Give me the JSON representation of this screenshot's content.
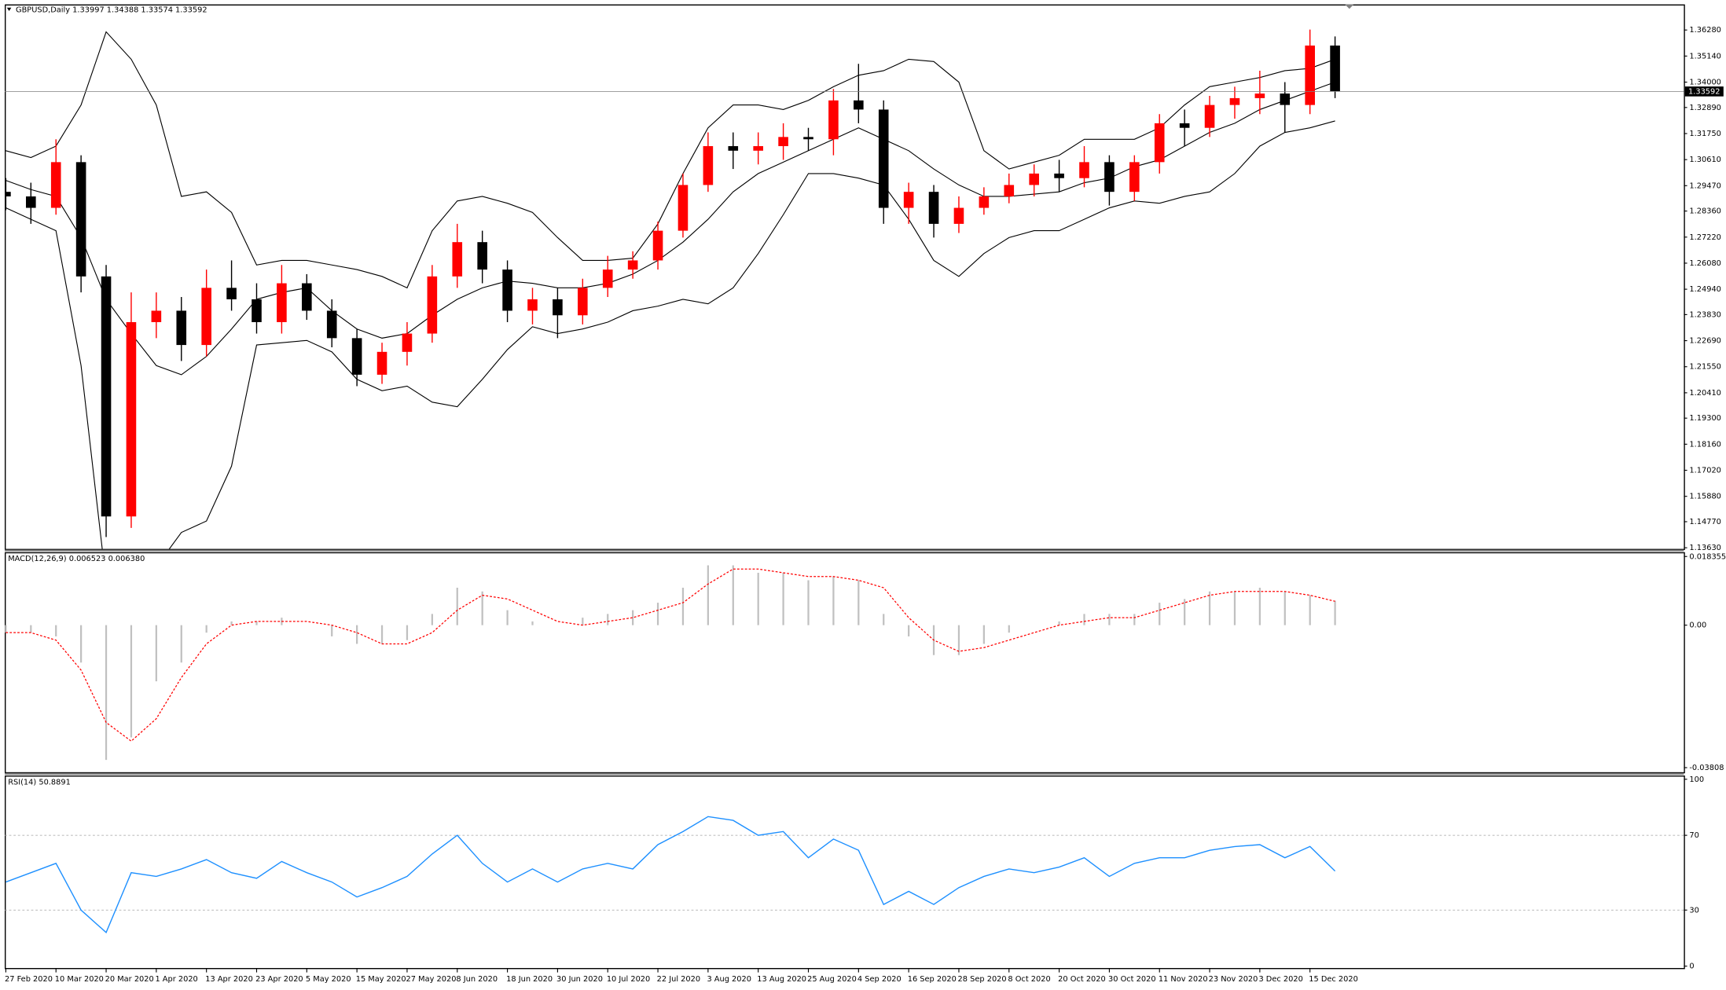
{
  "chart_data": [
    {
      "type": "candlestick",
      "title": "GBPUSD,Daily  1.33997 1.34388 1.33574 1.33592",
      "categories": [
        "27 Feb 2020",
        null,
        "10 Mar 2020",
        null,
        "20 Mar 2020",
        null,
        "1 Apr 2020",
        null,
        "13 Apr 2020",
        null,
        "23 Apr 2020",
        null,
        "5 May 2020",
        null,
        "15 May 2020",
        null,
        "27 May 2020",
        null,
        "8 Jun 2020",
        null,
        "18 Jun 2020",
        null,
        "30 Jun 2020",
        null,
        "10 Jul 2020",
        null,
        "22 Jul 2020",
        null,
        "3 Aug 2020",
        null,
        "13 Aug 2020",
        null,
        "25 Aug 2020",
        null,
        "4 Sep 2020",
        null,
        "16 Sep 2020",
        null,
        "28 Sep 2020",
        null,
        "8 Oct 2020",
        null,
        "20 Oct 2020",
        null,
        "30 Oct 2020",
        null,
        "11 Nov 2020",
        null,
        "23 Nov 2020",
        null,
        "3 Dec 2020",
        null,
        "15 Dec 2020",
        null
      ],
      "open": [
        1.292,
        1.29,
        1.285,
        1.305,
        1.255,
        1.15,
        1.235,
        1.24,
        1.225,
        1.25,
        1.245,
        1.235,
        1.252,
        1.24,
        1.228,
        1.212,
        1.222,
        1.23,
        1.255,
        1.27,
        1.258,
        1.24,
        1.245,
        1.238,
        1.25,
        1.258,
        1.262,
        1.275,
        1.295,
        1.312,
        1.31,
        1.312,
        1.316,
        1.315,
        1.332,
        1.328,
        1.285,
        1.292,
        1.278,
        1.285,
        1.29,
        1.295,
        1.3,
        1.298,
        1.305,
        1.292,
        1.305,
        1.322,
        1.32,
        1.33,
        1.333,
        1.335,
        1.33,
        1.356
      ],
      "high": [
        1.298,
        1.296,
        1.315,
        1.308,
        1.26,
        1.248,
        1.248,
        1.246,
        1.258,
        1.262,
        1.252,
        1.26,
        1.256,
        1.245,
        1.232,
        1.226,
        1.235,
        1.26,
        1.278,
        1.275,
        1.262,
        1.25,
        1.25,
        1.254,
        1.264,
        1.266,
        1.279,
        1.3,
        1.318,
        1.318,
        1.318,
        1.322,
        1.32,
        1.337,
        1.348,
        1.332,
        1.296,
        1.295,
        1.29,
        1.294,
        1.3,
        1.304,
        1.306,
        1.312,
        1.308,
        1.308,
        1.326,
        1.328,
        1.334,
        1.338,
        1.345,
        1.34,
        1.363,
        1.36
      ],
      "low": [
        1.284,
        1.278,
        1.282,
        1.248,
        1.141,
        1.145,
        1.228,
        1.218,
        1.22,
        1.24,
        1.23,
        1.23,
        1.236,
        1.224,
        1.207,
        1.208,
        1.216,
        1.226,
        1.25,
        1.252,
        1.235,
        1.234,
        1.228,
        1.234,
        1.246,
        1.254,
        1.258,
        1.272,
        1.292,
        1.302,
        1.304,
        1.306,
        1.31,
        1.308,
        1.322,
        1.278,
        1.278,
        1.272,
        1.274,
        1.282,
        1.287,
        1.29,
        1.292,
        1.294,
        1.286,
        1.288,
        1.3,
        1.312,
        1.316,
        1.324,
        1.326,
        1.318,
        1.326,
        1.333
      ],
      "close": [
        1.29,
        1.285,
        1.305,
        1.255,
        1.15,
        1.235,
        1.24,
        1.225,
        1.25,
        1.245,
        1.235,
        1.252,
        1.24,
        1.228,
        1.212,
        1.222,
        1.23,
        1.255,
        1.27,
        1.258,
        1.24,
        1.245,
        1.238,
        1.25,
        1.258,
        1.262,
        1.275,
        1.295,
        1.312,
        1.31,
        1.312,
        1.316,
        1.315,
        1.332,
        1.328,
        1.285,
        1.292,
        1.278,
        1.285,
        1.29,
        1.295,
        1.3,
        1.298,
        1.305,
        1.292,
        1.305,
        1.322,
        1.32,
        1.33,
        1.333,
        1.335,
        1.33,
        1.356,
        1.33592
      ],
      "up_color": "#ff0000",
      "down_color": "#000000",
      "bollinger": {
        "color": "#000000",
        "upper": [
          1.31,
          1.307,
          1.312,
          1.33,
          1.362,
          1.35,
          1.33,
          1.29,
          1.292,
          1.283,
          1.26,
          1.262,
          1.262,
          1.26,
          1.258,
          1.255,
          1.25,
          1.275,
          1.288,
          1.29,
          1.287,
          1.283,
          1.272,
          1.262,
          1.262,
          1.263,
          1.278,
          1.3,
          1.32,
          1.33,
          1.33,
          1.328,
          1.332,
          1.338,
          1.343,
          1.345,
          1.35,
          1.349,
          1.34,
          1.31,
          1.302,
          1.305,
          1.308,
          1.315,
          1.315,
          1.315,
          1.32,
          1.33,
          1.338,
          1.34,
          1.342,
          1.345,
          1.346,
          1.35
        ],
        "middle": [
          1.297,
          1.293,
          1.29,
          1.272,
          1.245,
          1.23,
          1.216,
          1.212,
          1.22,
          1.232,
          1.245,
          1.248,
          1.25,
          1.24,
          1.232,
          1.228,
          1.23,
          1.238,
          1.245,
          1.25,
          1.253,
          1.252,
          1.25,
          1.25,
          1.252,
          1.256,
          1.262,
          1.27,
          1.28,
          1.292,
          1.3,
          1.305,
          1.31,
          1.315,
          1.32,
          1.315,
          1.31,
          1.302,
          1.295,
          1.29,
          1.29,
          1.291,
          1.292,
          1.296,
          1.298,
          1.303,
          1.306,
          1.312,
          1.318,
          1.322,
          1.328,
          1.332,
          1.336,
          1.34
        ],
        "lower": [
          1.285,
          1.28,
          1.275,
          1.216,
          1.121,
          1.11,
          1.128,
          1.143,
          1.148,
          1.172,
          1.225,
          1.226,
          1.227,
          1.222,
          1.21,
          1.205,
          1.207,
          1.2,
          1.198,
          1.21,
          1.223,
          1.233,
          1.23,
          1.232,
          1.235,
          1.24,
          1.242,
          1.245,
          1.243,
          1.25,
          1.265,
          1.282,
          1.3,
          1.3,
          1.298,
          1.295,
          1.28,
          1.262,
          1.255,
          1.265,
          1.272,
          1.275,
          1.275,
          1.28,
          1.285,
          1.288,
          1.287,
          1.29,
          1.292,
          1.3,
          1.312,
          1.318,
          1.32,
          1.323
        ]
      },
      "ylim": [
        1.1358,
        1.374
      ],
      "yticks": [
        {
          "value": 1.3628,
          "label": "1.36280"
        },
        {
          "value": 1.3514,
          "label": "1.35140"
        },
        {
          "value": 1.34,
          "label": "1.34000"
        },
        {
          "value": 1.3289,
          "label": "1.32890"
        },
        {
          "value": 1.3175,
          "label": "1.31750"
        },
        {
          "value": 1.3061,
          "label": "1.30610"
        },
        {
          "value": 1.2947,
          "label": "1.29470"
        },
        {
          "value": 1.2836,
          "label": "1.28360"
        },
        {
          "value": 1.2722,
          "label": "1.27220"
        },
        {
          "value": 1.2608,
          "label": "1.26080"
        },
        {
          "value": 1.2494,
          "label": "1.24940"
        },
        {
          "value": 1.2383,
          "label": "1.23830"
        },
        {
          "value": 1.2269,
          "label": "1.22690"
        },
        {
          "value": 1.2155,
          "label": "1.21550"
        },
        {
          "value": 1.2041,
          "label": "1.20410"
        },
        {
          "value": 1.193,
          "label": "1.19300"
        },
        {
          "value": 1.1816,
          "label": "1.18160"
        },
        {
          "value": 1.1702,
          "label": "1.17020"
        },
        {
          "value": 1.1588,
          "label": "1.15880"
        },
        {
          "value": 1.1477,
          "label": "1.14770"
        },
        {
          "value": 1.1363,
          "label": "1.13630"
        }
      ]
    },
    {
      "type": "macd",
      "title": "MACD(12,26,9) 0.006523 0.006380",
      "histogram": [
        -0.002,
        -0.002,
        -0.003,
        -0.01,
        -0.036,
        -0.03,
        -0.015,
        -0.01,
        -0.002,
        0.001,
        0.001,
        0.002,
        0.0,
        -0.003,
        -0.005,
        -0.005,
        -0.004,
        0.003,
        0.01,
        0.009,
        0.004,
        0.001,
        0.0,
        0.002,
        0.003,
        0.004,
        0.006,
        0.01,
        0.016,
        0.016,
        0.014,
        0.014,
        0.012,
        0.013,
        0.012,
        0.003,
        -0.003,
        -0.008,
        -0.008,
        -0.005,
        -0.002,
        0.0,
        0.001,
        0.003,
        0.003,
        0.003,
        0.006,
        0.007,
        0.009,
        0.009,
        0.01,
        0.009,
        0.008,
        0.006523
      ],
      "signal": [
        -0.002,
        -0.002,
        -0.004,
        -0.012,
        -0.026,
        -0.031,
        -0.025,
        -0.014,
        -0.005,
        0.0,
        0.001,
        0.001,
        0.001,
        0.0,
        -0.002,
        -0.005,
        -0.005,
        -0.002,
        0.004,
        0.008,
        0.007,
        0.004,
        0.001,
        0.0,
        0.001,
        0.002,
        0.004,
        0.006,
        0.011,
        0.015,
        0.015,
        0.014,
        0.013,
        0.013,
        0.012,
        0.01,
        0.002,
        -0.004,
        -0.007,
        -0.006,
        -0.004,
        -0.002,
        0.0,
        0.001,
        0.002,
        0.002,
        0.004,
        0.006,
        0.008,
        0.009,
        0.009,
        0.009,
        0.008,
        0.00638
      ],
      "histogram_color": "#c0c0c0",
      "signal_color": "#ff0000",
      "ylim": [
        -0.0393,
        0.0195
      ],
      "yticks": [
        0.018355,
        {
          "value": 0,
          "label": "0.00"
        },
        -0.03808
      ]
    },
    {
      "type": "rsi",
      "title": "RSI(14) 50.8891",
      "values": [
        45,
        50,
        55,
        30,
        18,
        50,
        48,
        52,
        57,
        50,
        47,
        56,
        50,
        45,
        37,
        42,
        48,
        60,
        70,
        55,
        45,
        52,
        45,
        52,
        55,
        52,
        65,
        72,
        80,
        78,
        70,
        72,
        58,
        68,
        62,
        33,
        40,
        33,
        42,
        48,
        52,
        50,
        53,
        58,
        48,
        55,
        58,
        58,
        62,
        64,
        65,
        58,
        64,
        50.8891
      ],
      "color": "#1e90ff",
      "levels": [
        70,
        30
      ],
      "ylim": [
        -1,
        102
      ],
      "yticks": [
        0,
        30,
        70,
        100
      ]
    }
  ]
}
